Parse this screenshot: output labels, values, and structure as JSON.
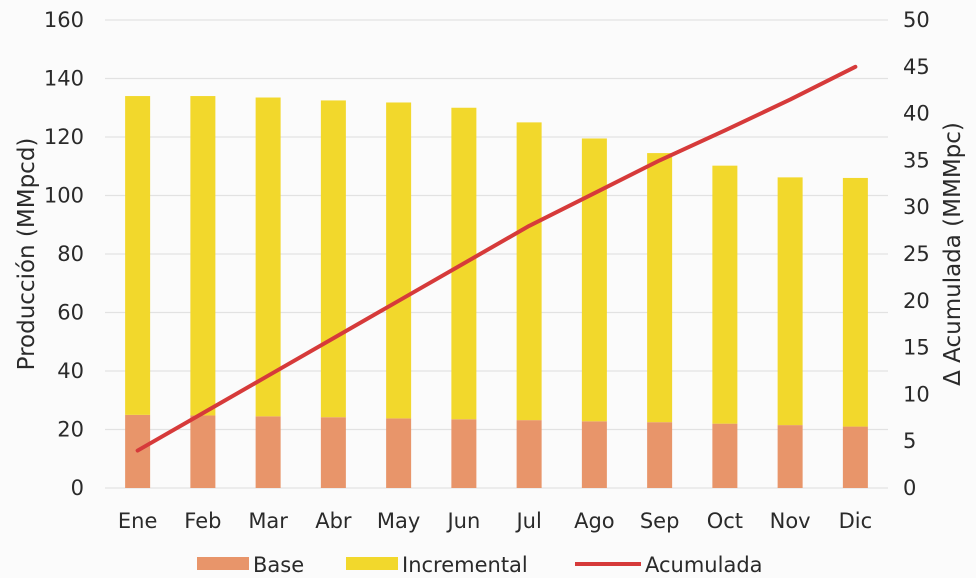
{
  "chart_data": {
    "type": "bar",
    "stacked": true,
    "categories": [
      "Ene",
      "Feb",
      "Mar",
      "Abr",
      "May",
      "Jun",
      "Jul",
      "Ago",
      "Sep",
      "Oct",
      "Nov",
      "Dic"
    ],
    "series": [
      {
        "name": "Base",
        "type": "bar",
        "axis": "left",
        "color": "#e8956a",
        "values": [
          25,
          24.8,
          24.5,
          24.2,
          23.8,
          23.5,
          23.2,
          22.8,
          22.5,
          22,
          21.5,
          21
        ]
      },
      {
        "name": "Incremental",
        "type": "bar",
        "axis": "left",
        "color": "#f2d82c",
        "values": [
          109,
          109.2,
          109,
          108.3,
          108,
          106.5,
          101.8,
          96.7,
          92,
          88.2,
          84.7,
          85
        ]
      },
      {
        "name": "Acumulada",
        "type": "line",
        "axis": "right",
        "color": "#d63a3a",
        "values": [
          4,
          8,
          12,
          16,
          20,
          24,
          28,
          31.5,
          35,
          38.2,
          41.5,
          45
        ]
      }
    ],
    "ylabel": "Producción  (MMpcd)",
    "y2label": "Δ Acumulada (MMMpc)",
    "ylim": [
      0,
      160
    ],
    "yticks": [
      "0",
      "20",
      "40",
      "60",
      "80",
      "100",
      "120",
      "140",
      "160"
    ],
    "y2lim": [
      0,
      50
    ],
    "y2ticks": [
      "0",
      "5",
      "10",
      "15",
      "20",
      "25",
      "30",
      "35",
      "40",
      "45",
      "50"
    ],
    "grid": true,
    "legend": "bottom"
  }
}
